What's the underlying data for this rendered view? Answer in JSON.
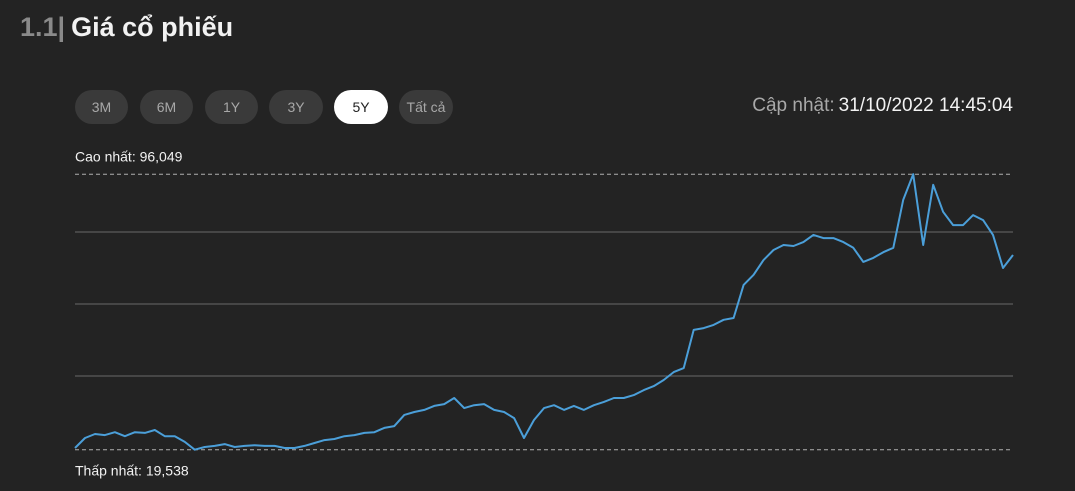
{
  "header": {
    "section_number": "1.1|",
    "title": "Giá cổ phiếu"
  },
  "controls": {
    "ranges": [
      "3M",
      "6M",
      "1Y",
      "3Y",
      "5Y",
      "Tất cả"
    ],
    "selected": 4,
    "updated_label": "Cập nhật:",
    "updated_value": "31/10/2022 14:45:04"
  },
  "chart_data": {
    "type": "line",
    "color": "#4b9fd9",
    "max_label": "Cao nhất: 96,049",
    "max": 96049,
    "min_label": "Thấp nhất: 19,538",
    "min": 19538,
    "ylim": [
      19538,
      96049
    ],
    "yticks": [
      40000,
      60000,
      80000
    ],
    "grid": true,
    "values": [
      20000,
      22800,
      23900,
      23600,
      24400,
      23300,
      24400,
      24200,
      25000,
      23300,
      23300,
      21700,
      19538,
      20300,
      20600,
      21100,
      20300,
      20600,
      20800,
      20600,
      20600,
      20000,
      20000,
      20600,
      21400,
      22200,
      22500,
      23300,
      23600,
      24200,
      24400,
      25600,
      26100,
      29200,
      30000,
      30600,
      31700,
      32200,
      33900,
      31100,
      31900,
      32200,
      30600,
      30000,
      28300,
      22800,
      27800,
      31100,
      31900,
      30600,
      31700,
      30600,
      31900,
      32800,
      33900,
      33900,
      34700,
      36100,
      37200,
      38900,
      41100,
      42200,
      52800,
      53300,
      54200,
      55600,
      56100,
      65300,
      68100,
      72200,
      75000,
      76400,
      76100,
      77200,
      79200,
      78300,
      78300,
      77200,
      75600,
      71700,
      72800,
      74400,
      75600,
      88900,
      96049,
      76400,
      93100,
      85600,
      81900,
      81900,
      84700,
      83300,
      79200,
      70000,
      73600
    ]
  }
}
